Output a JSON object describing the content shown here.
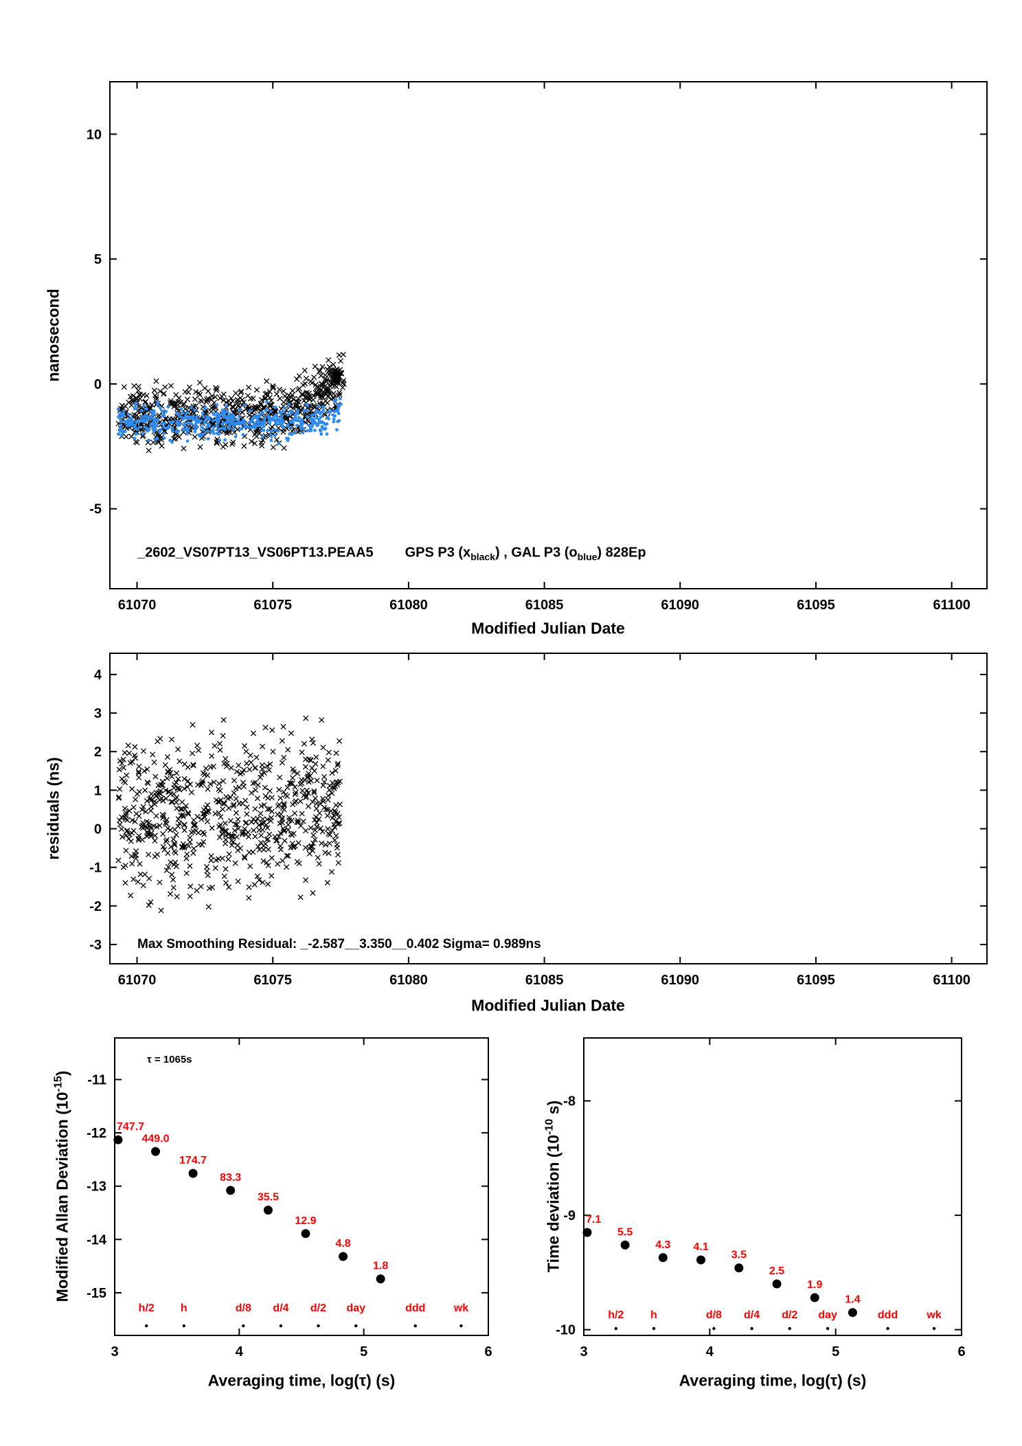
{
  "figure": {
    "background": "#ffffff",
    "accent_red": "#ff0000",
    "marker_blue": "#2e8cf0",
    "marker_black": "#000000"
  },
  "chart_data": [
    {
      "type": "scatter",
      "panel": "top",
      "ylabel": "nanosecond",
      "xlabel": "Modified Julian Date",
      "xlim": [
        61069,
        61101.3
      ],
      "ylim": [
        -8.2,
        12.1
      ],
      "xticks": [
        61070,
        61075,
        61080,
        61085,
        61090,
        61095,
        61100
      ],
      "yticks": [
        -5,
        0,
        5,
        10
      ],
      "annotation": {
        "file": "_2602_VS07PT13_VS06PT13.PEAA5",
        "gps_prefix": "GPS P3 (x",
        "gps_sub": "black",
        "between": ") ,  GAL P3 (o",
        "gal_sub": "blue",
        "suffix": ")  828Ep"
      },
      "series": [
        {
          "name": "GPS P3 black x",
          "marker": "x",
          "color": "#000000",
          "count": 700,
          "x_min": 61069.28,
          "x_max": 61077.62,
          "y_base": -1.3,
          "y_spread": 1.7,
          "trend_start": 61075.2,
          "trend_slope": 0.62,
          "y_clip_min": -3.3,
          "y_clip_max": 2.3,
          "seed": 1234,
          "cluster": {
            "x": 61077.32,
            "y": 0.3,
            "sx": 0.13,
            "sy": 0.32,
            "count": 50
          }
        },
        {
          "name": "GAL P3 blue o",
          "marker": "dot",
          "color": "#2e8cf0",
          "count": 460,
          "x_min": 61069.3,
          "x_max": 61077.55,
          "y_base": -1.55,
          "y_spread": 1.0,
          "trend_start": 61076.3,
          "trend_slope": 0.3,
          "y_clip_min": -2.75,
          "y_clip_max": -0.45,
          "seed": 77
        }
      ]
    },
    {
      "type": "scatter",
      "panel": "middle",
      "ylabel": "residuals (ns)",
      "xlabel": "Modified Julian Date",
      "xlim": [
        61069,
        61101.3
      ],
      "ylim": [
        -3.5,
        4.55
      ],
      "xticks": [
        61070,
        61075,
        61080,
        61085,
        61090,
        61095,
        61100
      ],
      "yticks": [
        -3,
        -2,
        -1,
        0,
        1,
        2,
        3,
        4
      ],
      "annotation": {
        "text": "Max Smoothing Residual: _-2.587__3.350__0.402  Sigma= 0.989ns"
      },
      "series": [
        {
          "name": "residuals",
          "marker": "x",
          "color": "#000000",
          "count": 700,
          "x_min": 61069.3,
          "x_max": 61077.5,
          "y_base": 0.35,
          "y_spread": 2.9,
          "trend_start": 61075.5,
          "trend_slope": 0.18,
          "y_clip_min": -2.35,
          "y_clip_max": 3.4,
          "seed": 999
        }
      ]
    },
    {
      "type": "scatter",
      "panel": "bottom-left",
      "ylabel_prefix": "Modified Allan Deviation (10",
      "ylabel_exp": "-15",
      "ylabel_suffix": ")",
      "xlabel": "Averaging time, log(τ) (s)",
      "tau_note": "τ = 1065s",
      "xlim": [
        3,
        6
      ],
      "ylim": [
        -15.8,
        -10.22
      ],
      "xticks": [
        3,
        4,
        5,
        6
      ],
      "yticks": [
        -11,
        -12,
        -13,
        -14,
        -15
      ],
      "points": {
        "log_tau": [
          3.027,
          3.328,
          3.629,
          3.93,
          4.232,
          4.533,
          4.834,
          5.135
        ],
        "y": [
          -12.13,
          -12.35,
          -12.76,
          -13.08,
          -13.45,
          -13.89,
          -14.32,
          -14.74
        ],
        "labels": [
          "747.7",
          "449.0",
          "174.7",
          "83.3",
          "35.5",
          "12.9",
          "4.8",
          "1.8"
        ]
      },
      "tau_marks": {
        "labels": [
          "h/2",
          "h",
          "d/8",
          "d/4",
          "d/2",
          "day",
          "ddd",
          "wk"
        ],
        "log_tau": [
          3.255,
          3.556,
          4.033,
          4.334,
          4.635,
          4.937,
          5.414,
          5.782
        ],
        "label_y": -15.35,
        "dot_y": -15.62
      }
    },
    {
      "type": "scatter",
      "panel": "bottom-right",
      "ylabel_prefix": "Time deviation (10",
      "ylabel_exp": "-10",
      "ylabel_suffix": " s)",
      "xlabel": "Averaging time, log(τ) (s)",
      "xlim": [
        3,
        6
      ],
      "ylim": [
        -10.05,
        -7.45
      ],
      "xticks": [
        3,
        4,
        5,
        6
      ],
      "yticks": [
        -8,
        -9,
        -10
      ],
      "points": {
        "log_tau": [
          3.027,
          3.328,
          3.629,
          3.93,
          4.232,
          4.533,
          4.834,
          5.135
        ],
        "y": [
          -9.15,
          -9.26,
          -9.37,
          -9.39,
          -9.46,
          -9.6,
          -9.72,
          -9.85
        ],
        "labels": [
          "7.1",
          "5.5",
          "4.3",
          "4.1",
          "3.5",
          "2.5",
          "1.9",
          "1.4"
        ]
      },
      "tau_marks": {
        "labels": [
          "h/2",
          "h",
          "d/8",
          "d/4",
          "d/2",
          "day",
          "ddd",
          "wk"
        ],
        "log_tau": [
          3.255,
          3.556,
          4.033,
          4.334,
          4.635,
          4.937,
          5.414,
          5.782
        ],
        "label_y": -9.9,
        "dot_y": -9.99
      }
    }
  ]
}
